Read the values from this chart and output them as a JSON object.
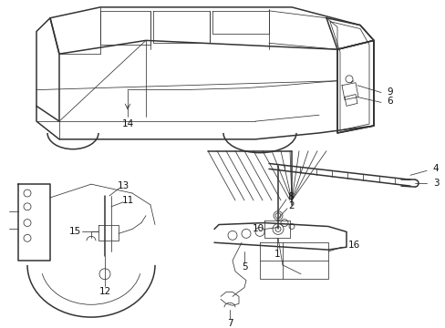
{
  "bg_color": "#ffffff",
  "line_color": "#333333",
  "label_color": "#111111",
  "fig_width": 4.89,
  "fig_height": 3.6,
  "dpi": 100,
  "lw_main": 1.1,
  "lw_thin": 0.55,
  "lw_med": 0.8,
  "label_fs": 7.5
}
